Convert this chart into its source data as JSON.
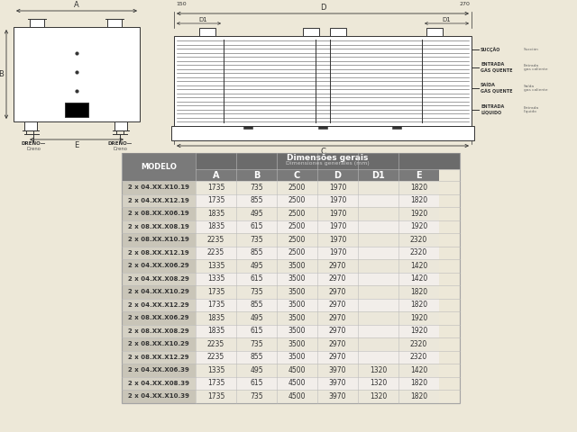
{
  "bg_color": "#ede8d8",
  "lc": "#333333",
  "header1": "Dimensões gerais",
  "header2": "Dimensiones generales (mm)",
  "col_headers": [
    "A",
    "B",
    "C",
    "D",
    "D1",
    "E"
  ],
  "model_col": "MODELO",
  "table_header_bg": "#6b6b6b",
  "table_subheader_bg": "#7a7a7a",
  "row_colors": [
    "#e8e4d8",
    "#d8d4c8"
  ],
  "model_colors": [
    "#c8c4b8",
    "#b8b4a8"
  ],
  "rows": [
    [
      "2 x 04.XX.X10.19",
      "1735",
      "735",
      "2500",
      "1970",
      "",
      "1820"
    ],
    [
      "2 x 04.XX.X12.19",
      "1735",
      "855",
      "2500",
      "1970",
      "",
      "1820"
    ],
    [
      "2 x 08.XX.X06.19",
      "1835",
      "495",
      "2500",
      "1970",
      "",
      "1920"
    ],
    [
      "2 x 08.XX.X08.19",
      "1835",
      "615",
      "2500",
      "1970",
      "",
      "1920"
    ],
    [
      "2 x 08.XX.X10.19",
      "2235",
      "735",
      "2500",
      "1970",
      "",
      "2320"
    ],
    [
      "2 x 08.XX.X12.19",
      "2235",
      "855",
      "2500",
      "1970",
      "",
      "2320"
    ],
    [
      "2 x 04.XX.X06.29",
      "1335",
      "495",
      "3500",
      "2970",
      "",
      "1420"
    ],
    [
      "2 x 04.XX.X08.29",
      "1335",
      "615",
      "3500",
      "2970",
      "",
      "1420"
    ],
    [
      "2 x 04.XX.X10.29",
      "1735",
      "735",
      "3500",
      "2970",
      "",
      "1820"
    ],
    [
      "2 x 04.XX.X12.29",
      "1735",
      "855",
      "3500",
      "2970",
      "",
      "1820"
    ],
    [
      "2 x 08.XX.X06.29",
      "1835",
      "495",
      "3500",
      "2970",
      "",
      "1920"
    ],
    [
      "2 x 08.XX.X08.29",
      "1835",
      "615",
      "3500",
      "2970",
      "",
      "1920"
    ],
    [
      "2 x 08.XX.X10.29",
      "2235",
      "735",
      "3500",
      "2970",
      "",
      "2320"
    ],
    [
      "2 x 08.XX.X12.29",
      "2235",
      "855",
      "3500",
      "2970",
      "",
      "2320"
    ],
    [
      "2 x 04.XX.X06.39",
      "1335",
      "495",
      "4500",
      "3970",
      "1320",
      "1420"
    ],
    [
      "2 x 04.XX.X08.39",
      "1735",
      "615",
      "4500",
      "3970",
      "1320",
      "1820"
    ],
    [
      "2 x 04.XX.X10.39",
      "1735",
      "735",
      "4500",
      "3970",
      "1320",
      "1820"
    ]
  ]
}
